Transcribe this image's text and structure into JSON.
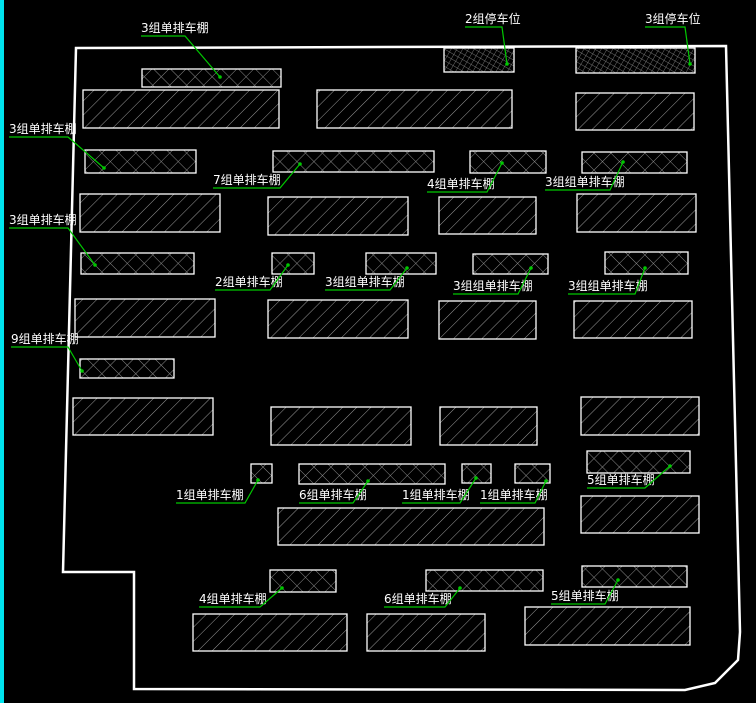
{
  "colors": {
    "background": "#000000",
    "outline": "#ffffff",
    "hatch": "#9a9a9a",
    "leader": "#00c800",
    "left_edge": "#00e5ef"
  },
  "carports": [
    {
      "label": "3组单排车棚"
    },
    {
      "label": "3组单排车棚"
    },
    {
      "label": "7组单排车棚"
    },
    {
      "label": "4组单排车棚"
    },
    {
      "label": "3组组单排车棚"
    },
    {
      "label": "3组单排车棚"
    },
    {
      "label": "2组单排车棚"
    },
    {
      "label": "3组组单排车棚"
    },
    {
      "label": "3组组单排车棚"
    },
    {
      "label": "3组组单排车棚"
    },
    {
      "label": "9组单排车棚"
    },
    {
      "label": "1组单排车棚"
    },
    {
      "label": "6组单排车棚"
    },
    {
      "label": "1组单排车棚"
    },
    {
      "label": "1组单排车棚"
    },
    {
      "label": "5组单排车棚"
    },
    {
      "label": "4组单排车棚"
    },
    {
      "label": "6组单排车棚"
    },
    {
      "label": "5组单排车棚"
    }
  ],
  "parking": [
    {
      "label": "2组停车位"
    },
    {
      "label": "3组停车位"
    }
  ]
}
